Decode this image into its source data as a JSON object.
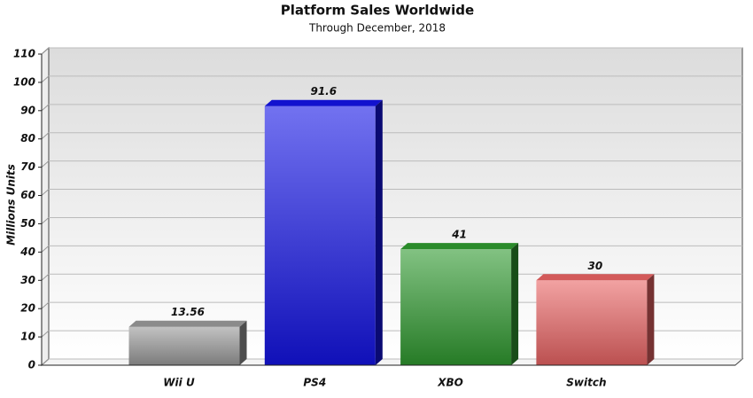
{
  "chart_data": {
    "type": "bar3d",
    "title": "Platform Sales Worldwide",
    "subtitle": "Through December, 2018",
    "y_label": "Millions Units",
    "categories": [
      "Wii U",
      "PS4",
      "XBO",
      "Switch"
    ],
    "values": [
      13.56,
      91.6,
      41,
      30
    ],
    "colors": [
      "#9a9a9a",
      "#1414e6",
      "#2f9a2f",
      "#ea6464"
    ],
    "ylim": [
      0,
      110
    ],
    "yticks": [
      0,
      10,
      20,
      30,
      40,
      50,
      60,
      70,
      80,
      90,
      100,
      110
    ],
    "grid": true
  }
}
